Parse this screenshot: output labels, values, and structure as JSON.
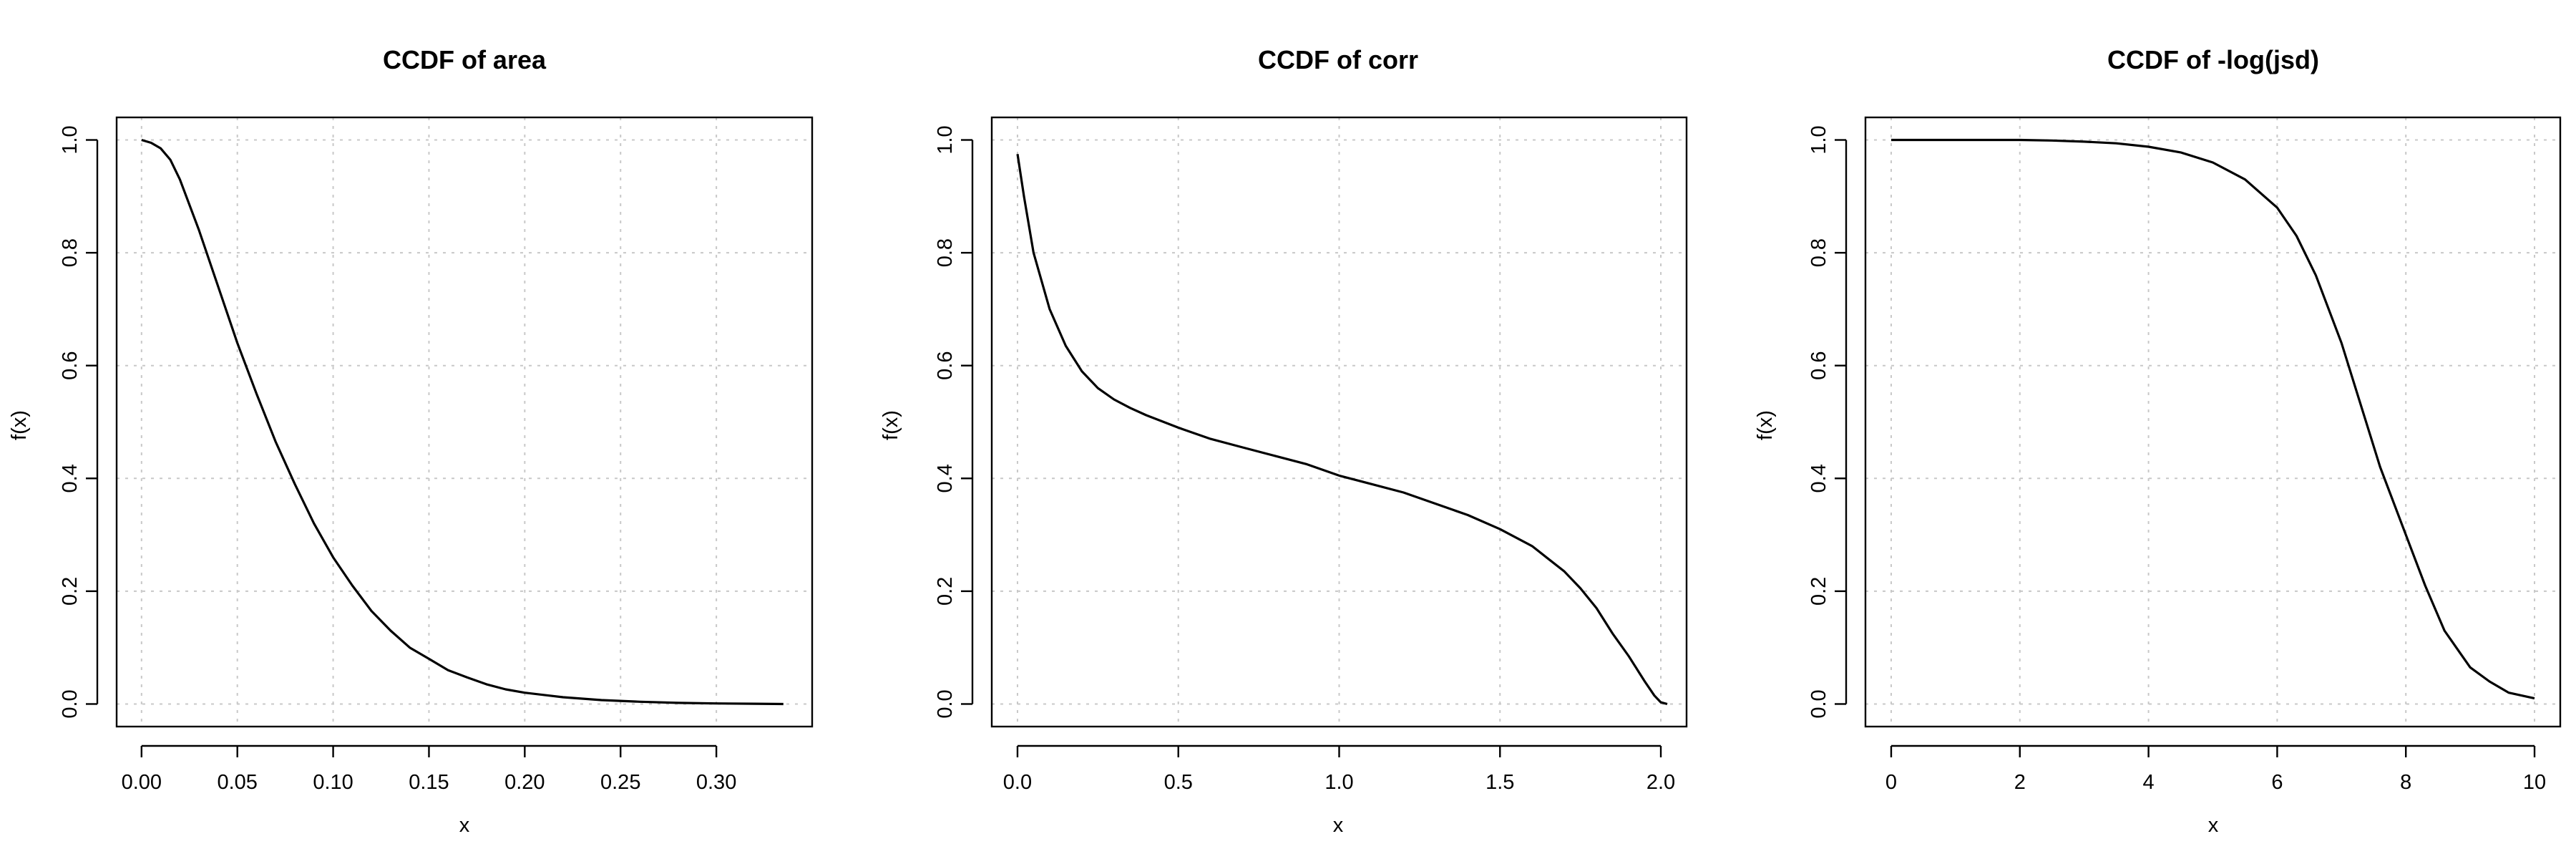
{
  "chart_data": [
    {
      "type": "line",
      "title": "CCDF of area",
      "xlabel": "x",
      "ylabel": "f(x)",
      "xlim": [
        -0.013,
        0.35
      ],
      "ylim": [
        -0.04,
        1.04
      ],
      "xticks": [
        0,
        0.05,
        0.1,
        0.15,
        0.2,
        0.25,
        0.3
      ],
      "xtick_labels": [
        "0.00",
        "0.05",
        "0.10",
        "0.15",
        "0.20",
        "0.25",
        "0.30"
      ],
      "yticks": [
        0,
        0.2,
        0.4,
        0.6,
        0.8,
        1.0
      ],
      "ytick_labels": [
        "0.0",
        "0.2",
        "0.4",
        "0.6",
        "0.8",
        "1.0"
      ],
      "grid": true,
      "series": [
        {
          "x": [
            0.0,
            0.005,
            0.01,
            0.015,
            0.02,
            0.03,
            0.04,
            0.05,
            0.06,
            0.07,
            0.08,
            0.09,
            0.1,
            0.11,
            0.12,
            0.13,
            0.14,
            0.15,
            0.16,
            0.17,
            0.18,
            0.19,
            0.2,
            0.22,
            0.24,
            0.26,
            0.28,
            0.3,
            0.32,
            0.335
          ],
          "y": [
            1.0,
            0.995,
            0.985,
            0.965,
            0.93,
            0.84,
            0.74,
            0.64,
            0.55,
            0.465,
            0.39,
            0.32,
            0.26,
            0.21,
            0.165,
            0.13,
            0.1,
            0.08,
            0.06,
            0.047,
            0.035,
            0.026,
            0.02,
            0.012,
            0.007,
            0.004,
            0.002,
            0.001,
            0.0005,
            0.0
          ]
        }
      ]
    },
    {
      "type": "line",
      "title": "CCDF of corr",
      "xlabel": "x",
      "ylabel": "f(x)",
      "xlim": [
        -0.08,
        2.08
      ],
      "ylim": [
        -0.04,
        1.04
      ],
      "xticks": [
        0,
        0.5,
        1.0,
        1.5,
        2.0
      ],
      "xtick_labels": [
        "0.0",
        "0.5",
        "1.0",
        "1.5",
        "2.0"
      ],
      "yticks": [
        0,
        0.2,
        0.4,
        0.6,
        0.8,
        1.0
      ],
      "ytick_labels": [
        "0.0",
        "0.2",
        "0.4",
        "0.6",
        "0.8",
        "1.0"
      ],
      "grid": true,
      "series": [
        {
          "x": [
            0.0,
            0.02,
            0.05,
            0.1,
            0.15,
            0.2,
            0.25,
            0.3,
            0.35,
            0.4,
            0.5,
            0.6,
            0.7,
            0.8,
            0.9,
            1.0,
            1.1,
            1.2,
            1.3,
            1.4,
            1.5,
            1.6,
            1.7,
            1.75,
            1.8,
            1.85,
            1.9,
            1.95,
            1.98,
            2.0,
            2.02
          ],
          "y": [
            0.975,
            0.9,
            0.8,
            0.7,
            0.635,
            0.59,
            0.56,
            0.54,
            0.525,
            0.512,
            0.49,
            0.47,
            0.455,
            0.44,
            0.425,
            0.405,
            0.39,
            0.375,
            0.355,
            0.335,
            0.31,
            0.28,
            0.235,
            0.205,
            0.17,
            0.125,
            0.085,
            0.04,
            0.015,
            0.003,
            0.0
          ]
        }
      ]
    },
    {
      "type": "line",
      "title": "CCDF of -log(jsd)",
      "xlabel": "x",
      "ylabel": "f(x)",
      "xlim": [
        -0.4,
        10.4
      ],
      "ylim": [
        -0.04,
        1.04
      ],
      "xticks": [
        0,
        2,
        4,
        6,
        8,
        10
      ],
      "xtick_labels": [
        "0",
        "2",
        "4",
        "6",
        "8",
        "10"
      ],
      "yticks": [
        0,
        0.2,
        0.4,
        0.6,
        0.8,
        1.0
      ],
      "ytick_labels": [
        "0.0",
        "0.2",
        "0.4",
        "0.6",
        "0.8",
        "1.0"
      ],
      "grid": true,
      "series": [
        {
          "x": [
            0.0,
            1.0,
            2.0,
            2.5,
            3.0,
            3.5,
            4.0,
            4.5,
            5.0,
            5.5,
            6.0,
            6.3,
            6.6,
            7.0,
            7.3,
            7.6,
            8.0,
            8.3,
            8.6,
            9.0,
            9.3,
            9.6,
            10.0
          ],
          "y": [
            1.0,
            1.0,
            1.0,
            0.999,
            0.997,
            0.994,
            0.988,
            0.978,
            0.96,
            0.93,
            0.88,
            0.83,
            0.76,
            0.64,
            0.53,
            0.42,
            0.3,
            0.21,
            0.13,
            0.065,
            0.04,
            0.02,
            0.01
          ]
        }
      ]
    }
  ]
}
